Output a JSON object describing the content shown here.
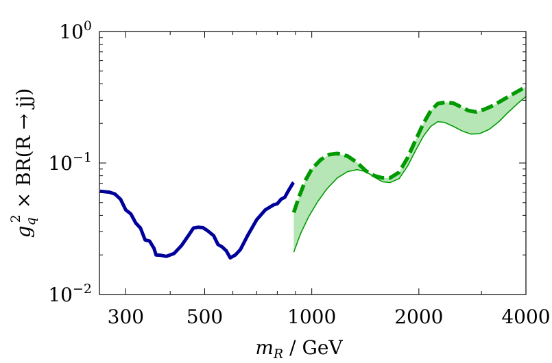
{
  "chart_data": {
    "type": "line",
    "xscale": "log",
    "yscale": "log",
    "xlim": [
      253,
      4000
    ],
    "ylim": [
      0.01,
      1
    ],
    "xlabel": {
      "symbol": "m",
      "subscript": "R",
      "rest": " / GeV"
    },
    "ylabel": {
      "g": "g",
      "sub": "q",
      "sup": "2",
      "rest": " × BR(R → jj)"
    },
    "xticks": [
      {
        "value": 300,
        "label": "300"
      },
      {
        "value": 500,
        "label": "500"
      },
      {
        "value": 1000,
        "label": "1000"
      },
      {
        "value": 2000,
        "label": "2000"
      },
      {
        "value": 4000,
        "label": "4000"
      }
    ],
    "xminor": [
      400,
      600,
      700,
      800,
      900,
      3000
    ],
    "yticks": [
      {
        "value": 1,
        "base": "10",
        "exp": "0"
      },
      {
        "value": 0.1,
        "base": "10",
        "exp": "−1"
      },
      {
        "value": 0.01,
        "base": "10",
        "exp": "−2"
      }
    ],
    "colors": {
      "observed": "#00009b",
      "expected": "#009a00",
      "band": "#b6e6b6",
      "axis": "#000000"
    },
    "series": [
      {
        "name": "observed-low-mass",
        "style": "solid-thick",
        "points": [
          [
            254,
            0.061
          ],
          [
            270,
            0.06
          ],
          [
            280,
            0.058
          ],
          [
            290,
            0.053
          ],
          [
            300,
            0.044
          ],
          [
            310,
            0.041
          ],
          [
            320,
            0.035
          ],
          [
            330,
            0.032
          ],
          [
            340,
            0.026
          ],
          [
            350,
            0.0255
          ],
          [
            360,
            0.0225
          ],
          [
            365,
            0.02
          ],
          [
            375,
            0.0199
          ],
          [
            390,
            0.0195
          ],
          [
            410,
            0.0205
          ],
          [
            430,
            0.0235
          ],
          [
            450,
            0.028
          ],
          [
            465,
            0.032
          ],
          [
            480,
            0.0325
          ],
          [
            495,
            0.0322
          ],
          [
            510,
            0.0305
          ],
          [
            530,
            0.028
          ],
          [
            545,
            0.024
          ],
          [
            560,
            0.023
          ],
          [
            575,
            0.0215
          ],
          [
            590,
            0.019
          ],
          [
            610,
            0.02
          ],
          [
            630,
            0.022
          ],
          [
            660,
            0.028
          ],
          [
            700,
            0.037
          ],
          [
            740,
            0.044
          ],
          [
            780,
            0.048
          ],
          [
            800,
            0.049
          ],
          [
            820,
            0.053
          ],
          [
            840,
            0.055
          ],
          [
            855,
            0.06
          ],
          [
            870,
            0.065
          ],
          [
            885,
            0.07
          ],
          [
            890,
            0.071
          ]
        ]
      },
      {
        "name": "expected-upper",
        "style": "dashed-thick",
        "points": [
          [
            890,
            0.042
          ],
          [
            920,
            0.055
          ],
          [
            960,
            0.074
          ],
          [
            1000,
            0.09
          ],
          [
            1060,
            0.106
          ],
          [
            1120,
            0.116
          ],
          [
            1180,
            0.118
          ],
          [
            1260,
            0.113
          ],
          [
            1340,
            0.101
          ],
          [
            1420,
            0.087
          ],
          [
            1500,
            0.08
          ],
          [
            1580,
            0.077
          ],
          [
            1660,
            0.077
          ],
          [
            1760,
            0.085
          ],
          [
            1860,
            0.11
          ],
          [
            1960,
            0.15
          ],
          [
            2060,
            0.2
          ],
          [
            2160,
            0.25
          ],
          [
            2260,
            0.283
          ],
          [
            2380,
            0.29
          ],
          [
            2500,
            0.285
          ],
          [
            2620,
            0.268
          ],
          [
            2760,
            0.25
          ],
          [
            2900,
            0.245
          ],
          [
            3050,
            0.255
          ],
          [
            3250,
            0.275
          ],
          [
            3500,
            0.31
          ],
          [
            3750,
            0.345
          ],
          [
            4000,
            0.38
          ]
        ]
      },
      {
        "name": "expected-lower",
        "style": "solid-thin",
        "points": [
          [
            890,
            0.021
          ],
          [
            930,
            0.029
          ],
          [
            980,
            0.039
          ],
          [
            1040,
            0.051
          ],
          [
            1100,
            0.063
          ],
          [
            1180,
            0.077
          ],
          [
            1260,
            0.086
          ],
          [
            1340,
            0.089
          ],
          [
            1420,
            0.086
          ],
          [
            1500,
            0.078
          ],
          [
            1580,
            0.072
          ],
          [
            1660,
            0.071
          ],
          [
            1760,
            0.076
          ],
          [
            1860,
            0.095
          ],
          [
            1960,
            0.125
          ],
          [
            2060,
            0.16
          ],
          [
            2160,
            0.19
          ],
          [
            2260,
            0.206
          ],
          [
            2360,
            0.204
          ],
          [
            2500,
            0.19
          ],
          [
            2650,
            0.175
          ],
          [
            2800,
            0.166
          ],
          [
            2960,
            0.167
          ],
          [
            3150,
            0.18
          ],
          [
            3350,
            0.205
          ],
          [
            3550,
            0.24
          ],
          [
            3800,
            0.285
          ],
          [
            4000,
            0.32
          ]
        ]
      }
    ]
  }
}
